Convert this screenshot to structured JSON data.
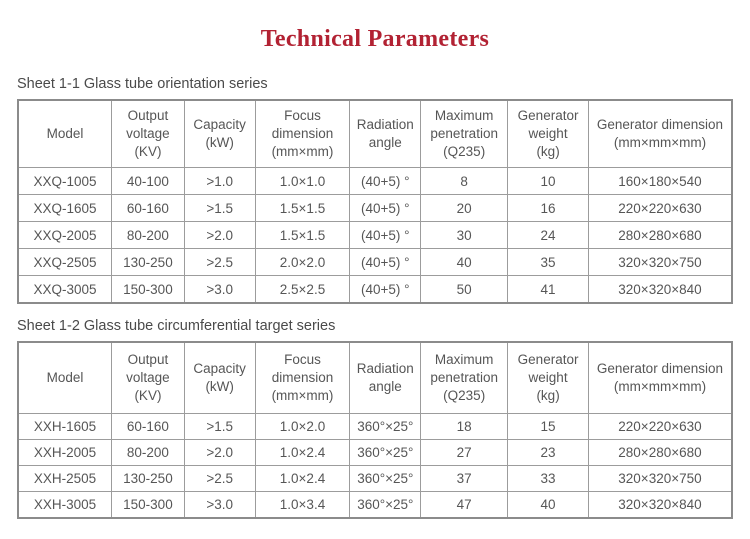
{
  "page": {
    "title": "Technical Parameters"
  },
  "colors": {
    "title_red": "#b22233",
    "caption_text": "#4a4a4a",
    "table_text": "#565656",
    "table_border": "#9c9c9c"
  },
  "tables": [
    {
      "caption": "Sheet 1-1 Glass tube orientation series",
      "headers": [
        "Model",
        "Output\nvoltage\n(KV)",
        "Capacity\n(kW)",
        "Focus\ndimension\n(mm×mm)",
        "Radiation\nangle",
        "Maximum\npenetration\n(Q235)",
        "Generator\nweight\n(kg)",
        "Generator dimension\n(mm×mm×mm)"
      ],
      "rows": [
        [
          "XXQ-1005",
          "40-100",
          ">1.0",
          "1.0×1.0",
          "(40+5) °",
          "8",
          "10",
          "160×180×540"
        ],
        [
          "XXQ-1605",
          "60-160",
          ">1.5",
          "1.5×1.5",
          "(40+5) °",
          "20",
          "16",
          "220×220×630"
        ],
        [
          "XXQ-2005",
          "80-200",
          ">2.0",
          "1.5×1.5",
          "(40+5) °",
          "30",
          "24",
          "280×280×680"
        ],
        [
          "XXQ-2505",
          "130-250",
          ">2.5",
          "2.0×2.0",
          "(40+5) °",
          "40",
          "35",
          "320×320×750"
        ],
        [
          "XXQ-3005",
          "150-300",
          ">3.0",
          "2.5×2.5",
          "(40+5) °",
          "50",
          "41",
          "320×320×840"
        ]
      ]
    },
    {
      "caption": "Sheet 1-2 Glass tube circumferential target series",
      "headers": [
        "Model",
        "Output\nvoltage\n(KV)",
        "Capacity\n(kW)",
        "Focus\ndimension\n(mm×mm)",
        "Radiation\nangle",
        "Maximum\npenetration\n(Q235)",
        "Generator\nweight\n(kg)",
        "Generator dimension\n(mm×mm×mm)"
      ],
      "rows": [
        [
          "XXH-1605",
          "60-160",
          ">1.5",
          "1.0×2.0",
          "360°×25°",
          "18",
          "15",
          "220×220×630"
        ],
        [
          "XXH-2005",
          "80-200",
          ">2.0",
          "1.0×2.4",
          "360°×25°",
          "27",
          "23",
          "280×280×680"
        ],
        [
          "XXH-2505",
          "130-250",
          ">2.5",
          "1.0×2.4",
          "360°×25°",
          "37",
          "33",
          "320×320×750"
        ],
        [
          "XXH-3005",
          "150-300",
          ">3.0",
          "1.0×3.4",
          "360°×25°",
          "47",
          "40",
          "320×320×840"
        ]
      ]
    }
  ]
}
